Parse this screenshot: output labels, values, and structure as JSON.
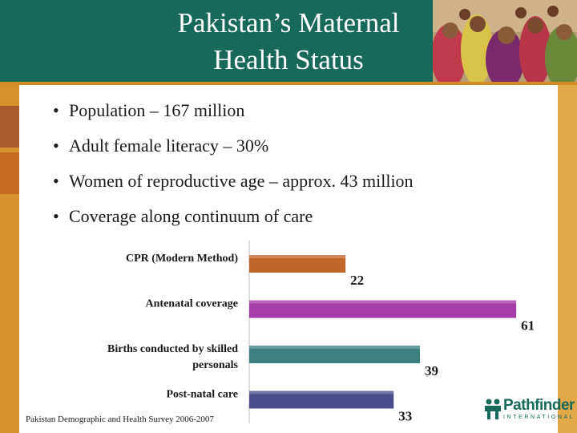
{
  "title": {
    "line1": "Pakistan’s Maternal",
    "line2": "Health Status"
  },
  "bullets": [
    "Population – 167 million",
    "Adult female literacy – 30%",
    "Women of reproductive age – approx. 43 million",
    "Coverage along continuum of care"
  ],
  "bullet_glyph": "•",
  "chart_data": {
    "type": "bar",
    "orientation": "horizontal",
    "categories": [
      "CPR (Modern Method)",
      "Antenatal coverage",
      "Births conducted by skilled personals",
      "Post-natal care"
    ],
    "category_lines": [
      [
        "CPR (Modern Method)"
      ],
      [
        "Antenatal coverage"
      ],
      [
        "Births conducted by skilled",
        "personals"
      ],
      [
        "Post-natal care"
      ]
    ],
    "values": [
      22,
      61,
      39,
      33
    ],
    "colors": [
      "#c0662a",
      "#a63ca8",
      "#3e8080",
      "#4b4c8c"
    ],
    "xlim": [
      0,
      65
    ],
    "grid": false,
    "legend": "none"
  },
  "source": "Pakistan Demographic and Health Survey 2006-2007",
  "logo": {
    "name": "Pathfinder",
    "sub": "INTERNATIONAL",
    "icon": "pathfinder-people-logo-icon"
  },
  "colors": {
    "header": "#176a5a",
    "accent": "#d68a2a"
  }
}
